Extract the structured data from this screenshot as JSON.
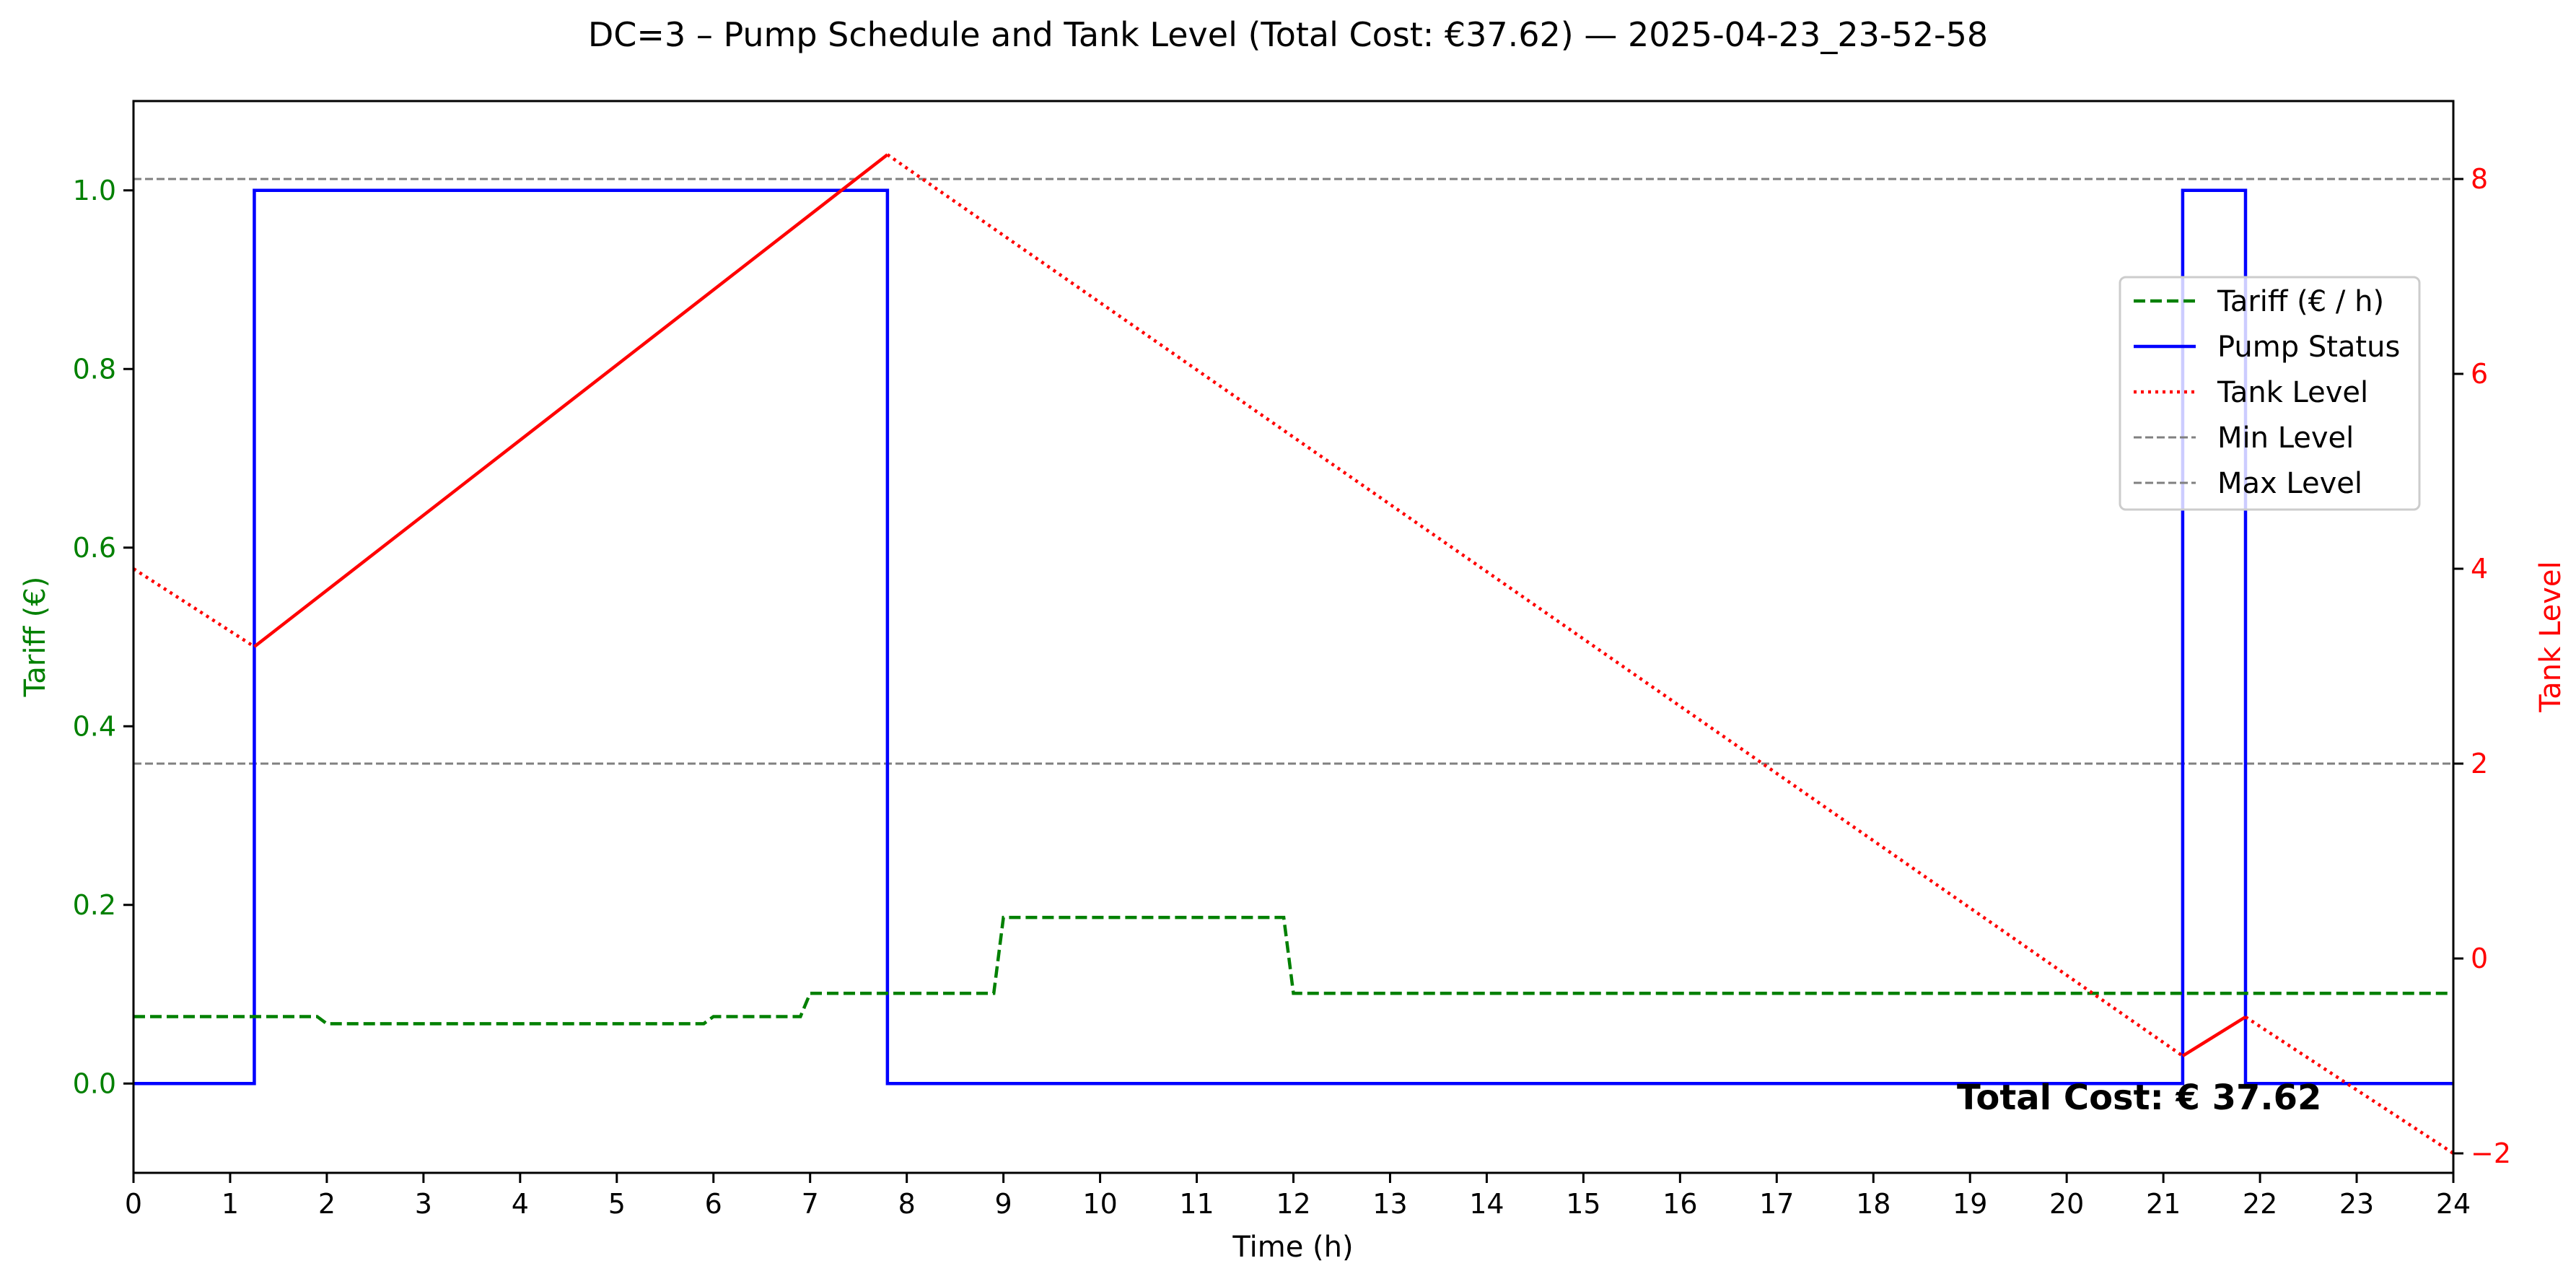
{
  "chart_data": {
    "type": "line",
    "title": "DC=3 – Pump Schedule and Tank Level (Total Cost: €37.62) — 2025-04-23_23-52-58",
    "xlabel": "Time (h)",
    "ylabel_left": "Tariff (€)",
    "ylabel_right": "Tank Level",
    "xlim": [
      0,
      24
    ],
    "ylim_left": [
      -0.1,
      1.1
    ],
    "ylim_right": [
      -2.2,
      8.8
    ],
    "x_ticks": [
      "0",
      "1",
      "2",
      "3",
      "4",
      "5",
      "6",
      "7",
      "8",
      "9",
      "10",
      "11",
      "12",
      "13",
      "14",
      "15",
      "16",
      "17",
      "18",
      "19",
      "20",
      "21",
      "22",
      "23",
      "24"
    ],
    "y_left_ticks": [
      "0.0",
      "0.2",
      "0.4",
      "0.6",
      "0.8",
      "1.0"
    ],
    "y_right_ticks": [
      "−2",
      "0",
      "2",
      "4",
      "6",
      "8"
    ],
    "grid": false,
    "legend_position": "upper-right",
    "colors": {
      "tariff": "#008000",
      "pump": "#0000ff",
      "tank": "#ff0000",
      "limits": "#808080",
      "left_axis": "#008000",
      "right_axis": "#ff0000"
    },
    "series": [
      {
        "key": "tariff",
        "name": "Tariff (€ / h)",
        "axis": "left",
        "style": "dashed",
        "x": [
          0,
          1.9,
          2.0,
          5.9,
          6.0,
          6.9,
          7.0,
          8.9,
          9.0,
          11.9,
          12.0,
          24
        ],
        "y": [
          0.075,
          0.075,
          0.067,
          0.067,
          0.075,
          0.075,
          0.101,
          0.101,
          0.186,
          0.186,
          0.101,
          0.101
        ]
      },
      {
        "key": "pump",
        "name": "Pump Status",
        "axis": "left",
        "style": "solid",
        "x": [
          0,
          1.25,
          1.25,
          7.8,
          7.8,
          21.2,
          21.2,
          21.85,
          21.85,
          24
        ],
        "y": [
          0,
          0,
          1,
          1,
          0,
          0,
          1,
          1,
          0,
          0
        ]
      },
      {
        "key": "tank",
        "name": "Tank Level",
        "axis": "right",
        "style": "dotted-when-idle, solid-when-pumping",
        "x": [
          0,
          1.25,
          7.8,
          21.2,
          21.85,
          24
        ],
        "y": [
          4.0,
          3.2,
          8.25,
          -1.0,
          -0.6,
          -2.0
        ]
      }
    ],
    "reference_lines": [
      {
        "key": "min",
        "name": "Min Level",
        "axis": "right",
        "value": 2
      },
      {
        "key": "max",
        "name": "Max Level",
        "axis": "right",
        "value": 8
      }
    ],
    "annotation": {
      "text": "Total Cost: € 37.62",
      "x": 18.85,
      "y": -0.02
    }
  }
}
